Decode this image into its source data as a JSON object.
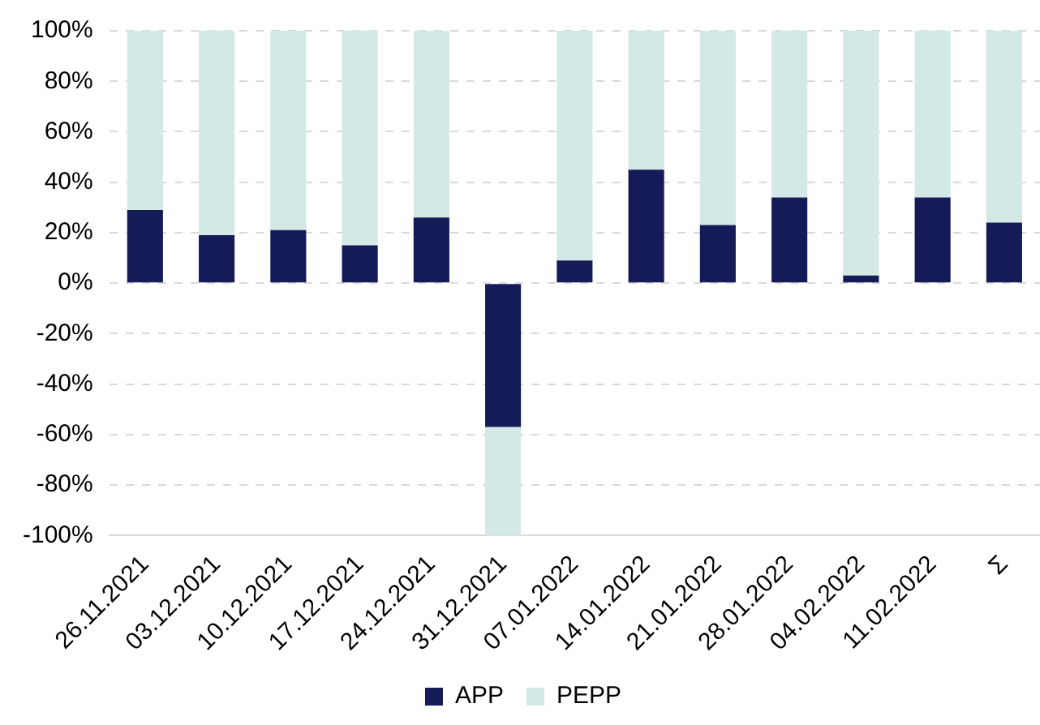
{
  "chart_data": {
    "type": "bar",
    "stacked": true,
    "categories": [
      "26.11.2021",
      "03.12.2021",
      "10.12.2021",
      "17.12.2021",
      "24.12.2021",
      "31.12.2021",
      "07.01.2022",
      "14.01.2022",
      "21.01.2022",
      "28.01.2022",
      "04.02.2022",
      "11.02.2022",
      "Σ"
    ],
    "series": [
      {
        "name": "APP",
        "color": "#141b56",
        "values": [
          29,
          19,
          21,
          15,
          26,
          -57,
          9,
          45,
          23,
          34,
          3,
          34,
          24
        ]
      },
      {
        "name": "PEPP",
        "color": "#d3e9e5",
        "values": [
          71,
          81,
          79,
          85,
          74,
          -43,
          91,
          55,
          77,
          66,
          97,
          66,
          76
        ]
      }
    ],
    "ylim": [
      -100,
      100
    ],
    "yticks": [
      {
        "value": -100,
        "label": "-100%"
      },
      {
        "value": -80,
        "label": "-80%"
      },
      {
        "value": -60,
        "label": "-60%"
      },
      {
        "value": -40,
        "label": "-40%"
      },
      {
        "value": -20,
        "label": "-20%"
      },
      {
        "value": 0,
        "label": "0%"
      },
      {
        "value": 20,
        "label": "20%"
      },
      {
        "value": 40,
        "label": "40%"
      },
      {
        "value": 60,
        "label": "60%"
      },
      {
        "value": 80,
        "label": "80%"
      },
      {
        "value": 100,
        "label": "100%"
      }
    ],
    "grid": "y",
    "legend": "bottom"
  }
}
